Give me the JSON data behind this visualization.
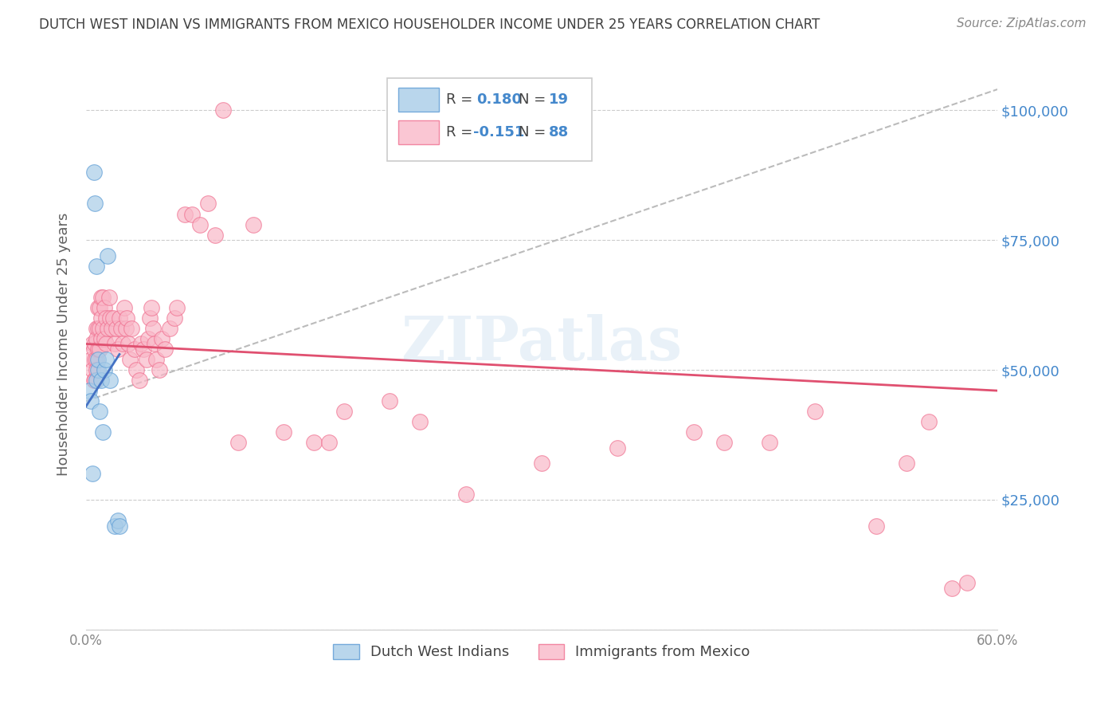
{
  "title": "DUTCH WEST INDIAN VS IMMIGRANTS FROM MEXICO HOUSEHOLDER INCOME UNDER 25 YEARS CORRELATION CHART",
  "source": "Source: ZipAtlas.com",
  "ylabel": "Householder Income Under 25 years",
  "xmin": 0.0,
  "xmax": 0.6,
  "ymin": 0,
  "ymax": 110000,
  "watermark": "ZIPatlas",
  "blue_color": "#a8cce8",
  "pink_color": "#f9b8c8",
  "blue_edge_color": "#5b9bd5",
  "pink_edge_color": "#f07090",
  "blue_line_color": "#4472c4",
  "pink_line_color": "#e05070",
  "dashed_line_color": "#bbbbbb",
  "background_color": "#ffffff",
  "grid_color": "#cccccc",
  "title_color": "#404040",
  "axis_label_color": "#606060",
  "right_tick_color": "#4488cc",
  "source_color": "#888888",
  "blue_x": [
    0.002,
    0.003,
    0.004,
    0.005,
    0.006,
    0.007,
    0.007,
    0.008,
    0.008,
    0.009,
    0.01,
    0.011,
    0.012,
    0.013,
    0.014,
    0.016,
    0.019,
    0.021,
    0.022
  ],
  "blue_y": [
    46000,
    44000,
    30000,
    88000,
    82000,
    70000,
    48000,
    50000,
    52000,
    42000,
    48000,
    38000,
    50000,
    52000,
    72000,
    48000,
    20000,
    21000,
    20000
  ],
  "pink_x": [
    0.003,
    0.004,
    0.004,
    0.005,
    0.005,
    0.006,
    0.006,
    0.006,
    0.007,
    0.007,
    0.007,
    0.007,
    0.008,
    0.008,
    0.008,
    0.009,
    0.009,
    0.009,
    0.01,
    0.01,
    0.01,
    0.011,
    0.011,
    0.012,
    0.012,
    0.013,
    0.013,
    0.014,
    0.015,
    0.016,
    0.017,
    0.018,
    0.019,
    0.02,
    0.021,
    0.022,
    0.023,
    0.024,
    0.025,
    0.026,
    0.027,
    0.028,
    0.029,
    0.03,
    0.032,
    0.033,
    0.035,
    0.036,
    0.038,
    0.04,
    0.041,
    0.042,
    0.043,
    0.044,
    0.045,
    0.046,
    0.048,
    0.05,
    0.052,
    0.055,
    0.058,
    0.06,
    0.065,
    0.07,
    0.075,
    0.08,
    0.085,
    0.09,
    0.1,
    0.11,
    0.13,
    0.15,
    0.16,
    0.17,
    0.2,
    0.22,
    0.25,
    0.3,
    0.35,
    0.4,
    0.42,
    0.45,
    0.48,
    0.52,
    0.54,
    0.555,
    0.57,
    0.58
  ],
  "pink_y": [
    52000,
    55000,
    50000,
    54000,
    48000,
    55000,
    52000,
    48000,
    58000,
    56000,
    52000,
    50000,
    62000,
    58000,
    54000,
    62000,
    58000,
    54000,
    64000,
    60000,
    56000,
    64000,
    58000,
    62000,
    56000,
    60000,
    55000,
    58000,
    64000,
    60000,
    58000,
    60000,
    55000,
    58000,
    54000,
    60000,
    58000,
    55000,
    62000,
    58000,
    60000,
    55000,
    52000,
    58000,
    54000,
    50000,
    48000,
    55000,
    54000,
    52000,
    56000,
    60000,
    62000,
    58000,
    55000,
    52000,
    50000,
    56000,
    54000,
    58000,
    60000,
    62000,
    80000,
    80000,
    78000,
    82000,
    76000,
    100000,
    36000,
    78000,
    38000,
    36000,
    36000,
    42000,
    44000,
    40000,
    26000,
    32000,
    35000,
    38000,
    36000,
    36000,
    42000,
    20000,
    32000,
    40000,
    8000,
    9000
  ]
}
